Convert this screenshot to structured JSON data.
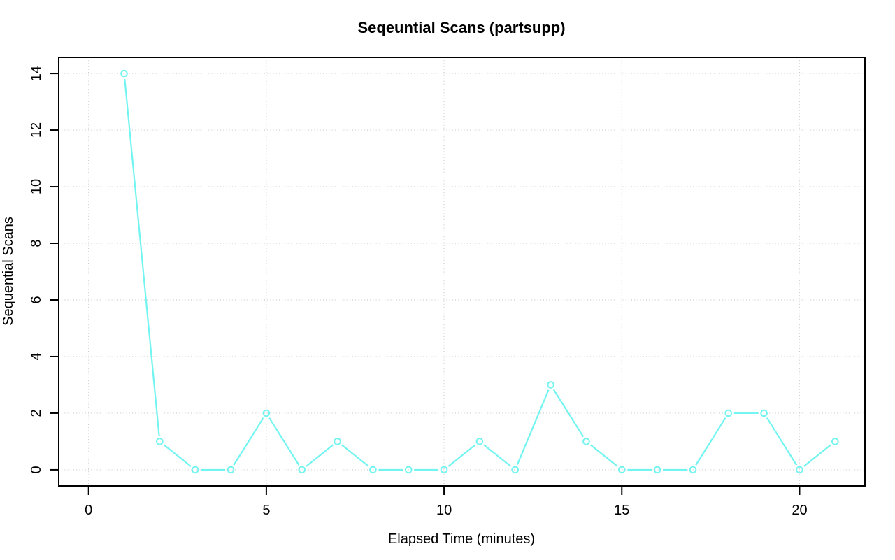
{
  "window": {
    "background": "#ffffff"
  },
  "chart_data": {
    "type": "line",
    "title": "Seqeuntial Scans (partsupp)",
    "xlabel": "Elapsed Time (minutes)",
    "ylabel": "Sequential Scans",
    "x": [
      1,
      2,
      3,
      4,
      5,
      6,
      7,
      8,
      9,
      10,
      11,
      12,
      13,
      14,
      15,
      16,
      17,
      18,
      19,
      20,
      21
    ],
    "series": [
      {
        "name": "sequential-scans",
        "color": "#72f4f0",
        "marker": "open-circle",
        "line_style": "segments-with-point-gaps",
        "values": [
          14,
          1,
          0,
          0,
          2,
          0,
          1,
          0,
          0,
          0,
          1,
          0,
          3,
          1,
          0,
          0,
          0,
          2,
          2,
          0,
          1
        ]
      }
    ],
    "x_ticks": [
      0,
      5,
      10,
      15,
      20
    ],
    "y_ticks": [
      0,
      2,
      4,
      6,
      8,
      10,
      12,
      14
    ],
    "xlim": [
      -0.84,
      21.84
    ],
    "ylim": [
      -0.57,
      14.57
    ],
    "grid": true,
    "grid_style": "dotted",
    "legend": "none",
    "colors": {
      "grid": "#cccccc",
      "axis": "#000000",
      "text": "#000000",
      "plot_background": "#ffffff"
    }
  }
}
